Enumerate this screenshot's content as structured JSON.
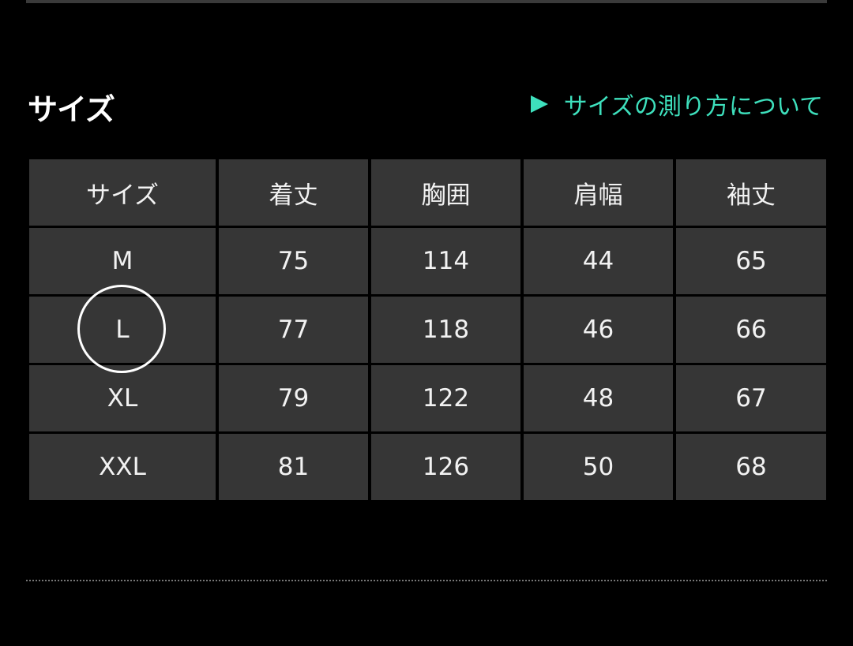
{
  "section_title": "サイズ",
  "measure_link": {
    "label": "サイズの測り方について",
    "icon": "play-triangle-icon",
    "color": "#3ee0bd"
  },
  "table": {
    "headers": [
      "サイズ",
      "着丈",
      "胸囲",
      "肩幅",
      "袖丈"
    ],
    "rows": [
      [
        "M",
        "75",
        "114",
        "44",
        "65"
      ],
      [
        "L",
        "77",
        "118",
        "46",
        "66"
      ],
      [
        "XL",
        "79",
        "122",
        "48",
        "67"
      ],
      [
        "XXL",
        "81",
        "126",
        "50",
        "68"
      ]
    ],
    "highlighted_size": "L"
  }
}
